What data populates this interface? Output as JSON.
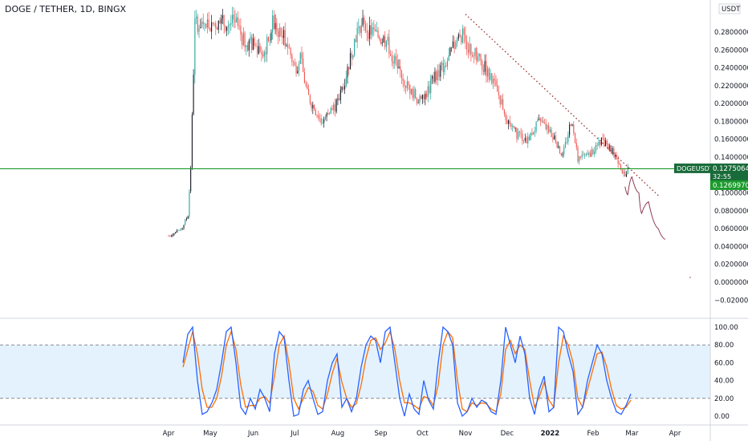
{
  "header": {
    "title": "DOGE / TETHER, 1D, BINGX"
  },
  "colors": {
    "up": "#26a69a",
    "up_dark": "#131722",
    "down": "#ef5350",
    "support": "#1b9b2d",
    "trendline": "#9c2a2a",
    "projection": "#8e3a52",
    "stoch_k": "#2962ff",
    "stoch_d": "#ff6d00",
    "stoch_band": "#e3f2fd",
    "grid_border": "#d1d4dc",
    "price_badge": "#1a6b3a"
  },
  "price_axis": {
    "currency": "USDT",
    "ticks": [
      "0.2800000",
      "0.2600000",
      "0.2400000",
      "0.2200000",
      "0.2000000",
      "0.1800000",
      "0.1600000",
      "0.1400000",
      "0.1000000",
      "0.0800000",
      "0.0600000",
      "0.0400000",
      "0.0200000",
      "0.0000000",
      "−0.0200000"
    ],
    "tick_values": [
      0.28,
      0.26,
      0.24,
      0.22,
      0.2,
      0.18,
      0.16,
      0.14,
      0.1,
      0.08,
      0.06,
      0.04,
      0.02,
      0.0,
      -0.02
    ],
    "symbol_badge": "DOGEUSDT",
    "last_price": "0.1275064",
    "countdown": "32:55",
    "support_price": "0.1269970"
  },
  "osc_axis": {
    "ticks": [
      "100.00",
      "80.00",
      "60.00",
      "40.00",
      "20.00",
      "0.00"
    ],
    "tick_values": [
      100,
      80,
      60,
      40,
      20,
      0
    ],
    "band": [
      20,
      80
    ]
  },
  "time_axis": {
    "labels": [
      "Apr",
      "May",
      "Jun",
      "Jul",
      "Aug",
      "Sep",
      "Oct",
      "Nov",
      "Dec",
      "2022",
      "Feb",
      "Mar",
      "Apr"
    ],
    "bold": [
      false,
      false,
      false,
      false,
      false,
      false,
      false,
      false,
      false,
      true,
      false,
      false,
      false
    ]
  },
  "chart_data": {
    "type": "candlestick",
    "title": "DOGE / TETHER, 1D, BINGX",
    "price_range": [
      -0.02,
      0.29
    ],
    "approx_close_path": [
      {
        "t": "Apr 1",
        "close": 0.052
      },
      {
        "t": "Apr 10",
        "close": 0.058
      },
      {
        "t": "Apr 15",
        "close": 0.075
      },
      {
        "t": "Apr 17",
        "close": 0.13
      },
      {
        "t": "Apr 20",
        "close": 0.29
      },
      {
        "t": "May 1",
        "close": 0.29
      },
      {
        "t": "May 20",
        "close": 0.29
      },
      {
        "t": "May 25",
        "close": 0.27
      },
      {
        "t": "Jun 10",
        "close": 0.26
      },
      {
        "t": "Jun 15",
        "close": 0.29
      },
      {
        "t": "Jun 25",
        "close": 0.27
      },
      {
        "t": "Jul 1",
        "close": 0.24
      },
      {
        "t": "Jul 5",
        "close": 0.25
      },
      {
        "t": "Jul 10",
        "close": 0.21
      },
      {
        "t": "Jul 20",
        "close": 0.18
      },
      {
        "t": "Aug 1",
        "close": 0.2
      },
      {
        "t": "Aug 10",
        "close": 0.25
      },
      {
        "t": "Aug 16",
        "close": 0.29
      },
      {
        "t": "Aug 25",
        "close": 0.28
      },
      {
        "t": "Sep 5",
        "close": 0.27
      },
      {
        "t": "Sep 10",
        "close": 0.25
      },
      {
        "t": "Sep 20",
        "close": 0.22
      },
      {
        "t": "Sep 30",
        "close": 0.2
      },
      {
        "t": "Oct 10",
        "close": 0.23
      },
      {
        "t": "Oct 20",
        "close": 0.25
      },
      {
        "t": "Oct 28",
        "close": 0.28
      },
      {
        "t": "Nov 5",
        "close": 0.26
      },
      {
        "t": "Nov 15",
        "close": 0.24
      },
      {
        "t": "Nov 25",
        "close": 0.21
      },
      {
        "t": "Dec 4",
        "close": 0.17
      },
      {
        "t": "Dec 15",
        "close": 0.16
      },
      {
        "t": "Dec 25",
        "close": 0.18
      },
      {
        "t": "Jan 5",
        "close": 0.16
      },
      {
        "t": "Jan 10",
        "close": 0.14
      },
      {
        "t": "Jan 16",
        "close": 0.18
      },
      {
        "t": "Jan 21",
        "close": 0.14
      },
      {
        "t": "Jan 28",
        "close": 0.14
      },
      {
        "t": "Feb 8",
        "close": 0.16
      },
      {
        "t": "Feb 15",
        "close": 0.145
      },
      {
        "t": "Feb 20",
        "close": 0.135
      },
      {
        "t": "Feb 24",
        "close": 0.115
      },
      {
        "t": "Feb 26",
        "close": 0.1275
      }
    ],
    "support_level": 0.127,
    "trendline": {
      "from": {
        "t": "Nov 1",
        "price": 0.3
      },
      "to": {
        "t": "Mar 20",
        "price": 0.097
      }
    },
    "projection": [
      {
        "t": "Feb 24",
        "price": 0.107
      },
      {
        "t": "Feb 26",
        "price": 0.098
      },
      {
        "t": "Mar 1",
        "price": 0.118
      },
      {
        "t": "Mar 6",
        "price": 0.1
      },
      {
        "t": "Mar 8",
        "price": 0.077
      },
      {
        "t": "Mar 13",
        "price": 0.09
      },
      {
        "t": "Mar 20",
        "price": 0.06
      },
      {
        "t": "Mar 25",
        "price": 0.048
      }
    ],
    "stoch_rsi": {
      "k_approx": [
        60,
        92,
        100,
        40,
        2,
        5,
        15,
        30,
        60,
        95,
        100,
        60,
        10,
        2,
        20,
        8,
        30,
        20,
        5,
        70,
        95,
        88,
        40,
        0,
        2,
        30,
        40,
        20,
        2,
        5,
        40,
        60,
        70,
        10,
        20,
        5,
        20,
        55,
        80,
        90,
        85,
        60,
        95,
        100,
        60,
        20,
        0,
        25,
        8,
        2,
        40,
        18,
        8,
        60,
        100,
        95,
        80,
        15,
        0,
        5,
        20,
        10,
        18,
        15,
        5,
        2,
        40,
        100,
        80,
        60,
        90,
        70,
        20,
        2,
        30,
        45,
        5,
        10,
        100,
        95,
        70,
        50,
        2,
        10,
        40,
        60,
        80,
        70,
        40,
        20,
        5,
        2,
        12,
        25
      ],
      "d_approx": [
        55,
        75,
        95,
        70,
        30,
        10,
        10,
        20,
        45,
        80,
        95,
        75,
        35,
        10,
        12,
        12,
        20,
        22,
        15,
        45,
        80,
        90,
        60,
        20,
        8,
        20,
        32,
        28,
        12,
        8,
        25,
        48,
        65,
        38,
        20,
        10,
        14,
        35,
        65,
        85,
        88,
        75,
        82,
        95,
        75,
        40,
        15,
        15,
        12,
        8,
        22,
        20,
        12,
        35,
        80,
        95,
        88,
        40,
        8,
        5,
        15,
        12,
        15,
        14,
        8,
        5,
        25,
        75,
        85,
        70,
        80,
        75,
        40,
        10,
        22,
        38,
        18,
        10,
        60,
        90,
        80,
        60,
        20,
        10,
        30,
        50,
        70,
        72,
        55,
        30,
        12,
        8,
        10,
        18
      ]
    }
  }
}
